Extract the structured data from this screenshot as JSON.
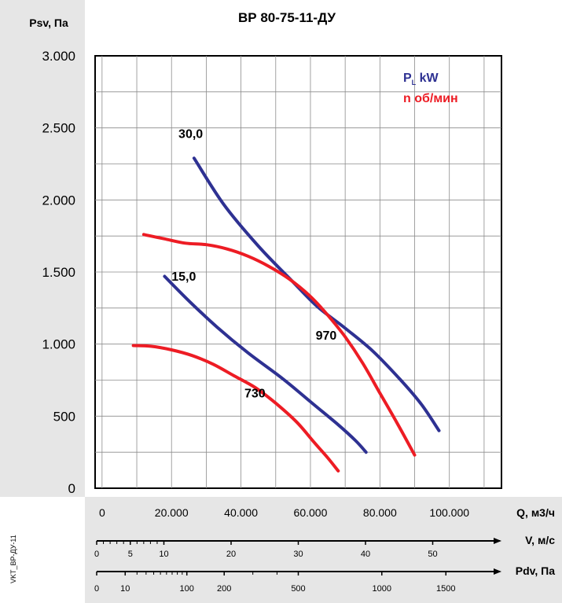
{
  "chart_data": {
    "type": "line",
    "title": "ВР 80-75-11-ДУ",
    "ylabel": "Psv, Па",
    "xlabel": "Q, м3/ч",
    "side_label": "VKT_ВР-ДУ-11",
    "xlim": [
      -2000,
      115000
    ],
    "ylim": [
      0,
      3000
    ],
    "grid": true,
    "y_ticks": [
      0,
      500,
      1000,
      1500,
      2000,
      2500,
      3000
    ],
    "y_tick_labels": [
      "0",
      "500",
      "1.000",
      "1.500",
      "2.000",
      "2.500",
      "3.000"
    ],
    "x_ticks": [
      0,
      20000,
      40000,
      60000,
      80000,
      100000
    ],
    "x_tick_labels": [
      "0",
      "20.000",
      "40.000",
      "60.000",
      "80.000",
      "100.000"
    ],
    "legend": {
      "position": "top-right",
      "items": [
        {
          "main": "P",
          "sub": "L",
          "rest": " kW",
          "color": "#2e3192"
        },
        {
          "main": "n об/мин",
          "sub": "",
          "rest": "",
          "color": "#ed1c24"
        }
      ]
    },
    "colors": {
      "power": "#2e3192",
      "speed": "#ed1c24"
    },
    "series": [
      {
        "name": "30,0",
        "color": "#2e3192",
        "x": [
          26500,
          35000,
          45000,
          55000,
          62000,
          70000,
          78000,
          86000,
          92000,
          97000
        ],
        "y": [
          2290,
          1970,
          1680,
          1430,
          1260,
          1110,
          950,
          750,
          580,
          400
        ]
      },
      {
        "name": "15,0",
        "color": "#2e3192",
        "x": [
          18000,
          25000,
          33000,
          42000,
          52000,
          60000,
          68000,
          73000,
          76000
        ],
        "y": [
          1470,
          1300,
          1120,
          940,
          760,
          600,
          440,
          330,
          250
        ]
      },
      {
        "name": "970",
        "color": "#ed1c24",
        "x": [
          12000,
          18000,
          24000,
          30000,
          36000,
          42000,
          48000,
          54000,
          60000,
          65000,
          70000,
          75000,
          80000,
          85000,
          90000
        ],
        "y": [
          1760,
          1730,
          1700,
          1690,
          1660,
          1610,
          1540,
          1450,
          1330,
          1200,
          1050,
          870,
          660,
          450,
          230
        ]
      },
      {
        "name": "730",
        "color": "#ed1c24",
        "x": [
          9000,
          14000,
          20000,
          26000,
          32000,
          38000,
          44000,
          50000,
          56000,
          61000,
          65000,
          68000
        ],
        "y": [
          990,
          985,
          960,
          920,
          860,
          780,
          700,
          590,
          460,
          320,
          210,
          120
        ]
      }
    ],
    "curve_labels": [
      {
        "text": "30,0",
        "x": 22000,
        "y": 2430
      },
      {
        "text": "15,0",
        "x": 20000,
        "y": 1440
      },
      {
        "text": "970",
        "x": 61500,
        "y": 1030
      },
      {
        "text": "730",
        "x": 41000,
        "y": 630
      }
    ],
    "scales": [
      {
        "label": "V, м/с",
        "axis_type": "linear",
        "max_value": 60,
        "tick_labels": [
          {
            "value": 0,
            "text": "0"
          },
          {
            "value": 5,
            "text": "5"
          },
          {
            "value": 10,
            "text": "10"
          },
          {
            "value": 20,
            "text": "20"
          },
          {
            "value": 30,
            "text": "30"
          },
          {
            "value": 40,
            "text": "40"
          },
          {
            "value": 50,
            "text": "50"
          }
        ],
        "minor_ticks": [
          1,
          2,
          3,
          4,
          6,
          7,
          8,
          9
        ]
      },
      {
        "label": "Pdv, Па",
        "axis_type": "sqrt",
        "max_value": 2000,
        "tick_labels": [
          {
            "value": 0,
            "text": "0"
          },
          {
            "value": 10,
            "text": "10"
          },
          {
            "value": 100,
            "text": "100"
          },
          {
            "value": 200,
            "text": "200"
          },
          {
            "value": 500,
            "text": "500"
          },
          {
            "value": 1000,
            "text": "1000"
          },
          {
            "value": 1500,
            "text": "1500"
          }
        ],
        "minor_ticks": [
          20,
          30,
          40,
          50,
          60,
          70,
          80,
          90,
          300,
          400
        ]
      }
    ]
  }
}
